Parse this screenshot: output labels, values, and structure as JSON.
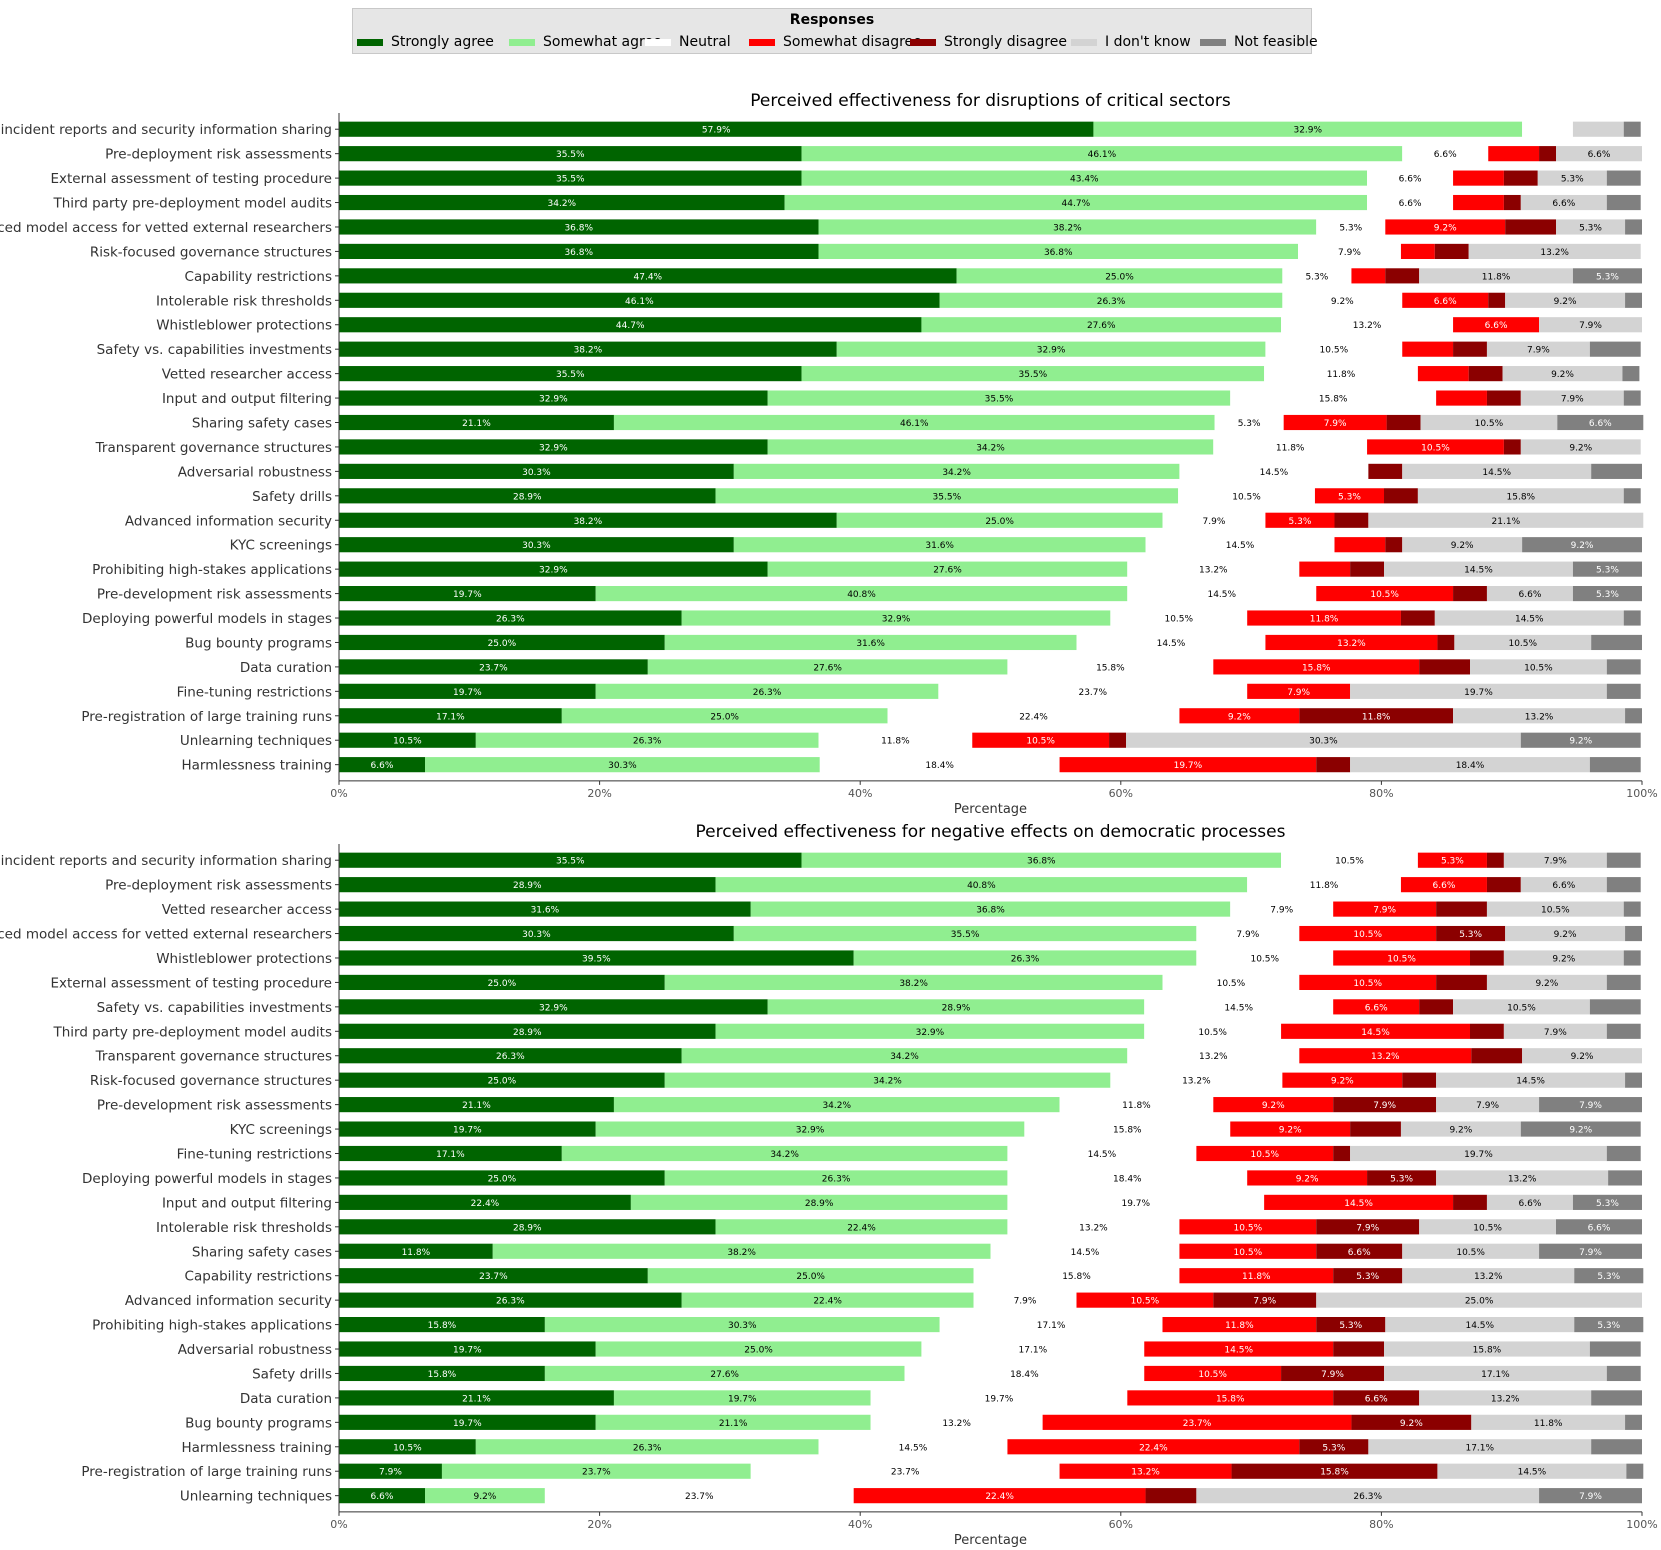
{
  "legend": {
    "title": "Responses",
    "entries": [
      {
        "name": "Strongly agree",
        "color": "#006400"
      },
      {
        "name": "Somewhat agree",
        "color": "#90ee90"
      },
      {
        "name": "Neutral",
        "color": "#ffffff"
      },
      {
        "name": "Somewhat disagree",
        "color": "#ff0000"
      },
      {
        "name": "Strongly disagree",
        "color": "#8b0000"
      },
      {
        "name": "I don't know",
        "color": "#d3d3d3"
      },
      {
        "name": "Not feasible",
        "color": "#808080"
      }
    ]
  },
  "chart_data": [
    {
      "type": "bar",
      "orientation": "horizontal",
      "stacked": true,
      "title": "Perceived effectiveness for disruptions of critical sectors",
      "xlabel": "Percentage",
      "ylabel": "",
      "xlim": [
        0,
        100
      ],
      "xticks": [
        "0%",
        "20%",
        "40%",
        "60%",
        "80%",
        "100%"
      ],
      "grid": false,
      "series": [
        "Strongly agree",
        "Somewhat agree",
        "Neutral",
        "Somewhat disagree",
        "Strongly disagree",
        "I don't know",
        "Not feasible"
      ],
      "rows": [
        {
          "label": "Safety incident reports and security information sharing",
          "values": [
            57.9,
            32.9,
            3.9,
            0,
            0,
            3.9,
            1.3
          ]
        },
        {
          "label": "Pre-deployment risk assessments",
          "values": [
            35.5,
            46.1,
            6.6,
            3.9,
            1.3,
            6.6,
            0
          ]
        },
        {
          "label": "External assessment of testing procedure",
          "values": [
            35.5,
            43.4,
            6.6,
            3.9,
            2.6,
            5.3,
            2.6
          ]
        },
        {
          "label": "Third party pre-deployment model audits",
          "values": [
            34.2,
            44.7,
            6.6,
            3.9,
            1.3,
            6.6,
            2.6
          ]
        },
        {
          "label": "Advanced model access for vetted external researchers",
          "values": [
            36.8,
            38.2,
            5.3,
            9.2,
            3.9,
            5.3,
            1.3
          ]
        },
        {
          "label": "Risk-focused governance structures",
          "values": [
            36.8,
            36.8,
            7.9,
            2.6,
            2.6,
            13.2,
            0
          ]
        },
        {
          "label": "Capability restrictions",
          "values": [
            47.4,
            25.0,
            5.3,
            2.6,
            2.6,
            11.8,
            5.3
          ]
        },
        {
          "label": "Intolerable risk thresholds",
          "values": [
            46.1,
            26.3,
            9.2,
            6.6,
            1.3,
            9.2,
            1.3
          ]
        },
        {
          "label": "Whistleblower protections",
          "values": [
            44.7,
            27.6,
            13.2,
            6.6,
            0,
            7.9,
            0
          ]
        },
        {
          "label": "Safety vs. capabilities investments",
          "values": [
            38.2,
            32.9,
            10.5,
            3.9,
            2.6,
            7.9,
            3.9
          ]
        },
        {
          "label": "Vetted researcher access",
          "values": [
            35.5,
            35.5,
            11.8,
            3.9,
            2.6,
            9.2,
            1.3
          ]
        },
        {
          "label": "Input and output filtering",
          "values": [
            32.9,
            35.5,
            15.8,
            3.9,
            2.6,
            7.9,
            1.3
          ]
        },
        {
          "label": "Sharing safety cases",
          "values": [
            21.1,
            46.1,
            5.3,
            7.9,
            2.6,
            10.5,
            6.6
          ]
        },
        {
          "label": "Transparent governance structures",
          "values": [
            32.9,
            34.2,
            11.8,
            10.5,
            1.3,
            9.2,
            0
          ]
        },
        {
          "label": "Adversarial robustness",
          "values": [
            30.3,
            34.2,
            14.5,
            0,
            2.6,
            14.5,
            3.9
          ]
        },
        {
          "label": "Safety drills",
          "values": [
            28.9,
            35.5,
            10.5,
            5.3,
            2.6,
            15.8,
            1.3
          ]
        },
        {
          "label": "Advanced information security",
          "values": [
            38.2,
            25.0,
            7.9,
            5.3,
            2.6,
            21.1,
            0
          ]
        },
        {
          "label": "KYC screenings",
          "values": [
            30.3,
            31.6,
            14.5,
            3.9,
            1.3,
            9.2,
            9.2
          ]
        },
        {
          "label": "Prohibiting high-stakes applications",
          "values": [
            32.9,
            27.6,
            13.2,
            3.9,
            2.6,
            14.5,
            5.3
          ]
        },
        {
          "label": "Pre-development risk assessments",
          "values": [
            19.7,
            40.8,
            14.5,
            10.5,
            2.6,
            6.6,
            5.3
          ]
        },
        {
          "label": "Deploying powerful models in stages",
          "values": [
            26.3,
            32.9,
            10.5,
            11.8,
            2.6,
            14.5,
            1.3
          ]
        },
        {
          "label": "Bug bounty programs",
          "values": [
            25.0,
            31.6,
            14.5,
            13.2,
            1.3,
            10.5,
            3.9
          ]
        },
        {
          "label": "Data curation",
          "values": [
            23.7,
            27.6,
            15.8,
            15.8,
            3.9,
            10.5,
            2.6
          ]
        },
        {
          "label": "Fine-tuning restrictions",
          "values": [
            19.7,
            26.3,
            23.7,
            7.9,
            0,
            19.7,
            2.6
          ]
        },
        {
          "label": "Pre-registration of large training runs",
          "values": [
            17.1,
            25.0,
            22.4,
            9.2,
            11.8,
            13.2,
            1.3
          ]
        },
        {
          "label": "Unlearning techniques",
          "values": [
            10.5,
            26.3,
            11.8,
            10.5,
            1.3,
            30.3,
            9.2
          ]
        },
        {
          "label": "Harmlessness training",
          "values": [
            6.6,
            30.3,
            18.4,
            19.7,
            2.6,
            18.4,
            3.9
          ]
        }
      ]
    },
    {
      "type": "bar",
      "orientation": "horizontal",
      "stacked": true,
      "title": "Perceived effectiveness for negative effects on democratic processes",
      "xlabel": "Percentage",
      "ylabel": "",
      "xlim": [
        0,
        100
      ],
      "xticks": [
        "0%",
        "20%",
        "40%",
        "60%",
        "80%",
        "100%"
      ],
      "grid": false,
      "series": [
        "Strongly agree",
        "Somewhat agree",
        "Neutral",
        "Somewhat disagree",
        "Strongly disagree",
        "I don't know",
        "Not feasible"
      ],
      "rows": [
        {
          "label": "Safety incident reports and security information sharing",
          "values": [
            35.5,
            36.8,
            10.5,
            5.3,
            1.3,
            7.9,
            2.6
          ]
        },
        {
          "label": "Pre-deployment risk assessments",
          "values": [
            28.9,
            40.8,
            11.8,
            6.6,
            2.6,
            6.6,
            2.6
          ]
        },
        {
          "label": "Vetted researcher access",
          "values": [
            31.6,
            36.8,
            7.9,
            7.9,
            3.9,
            10.5,
            1.3
          ]
        },
        {
          "label": "Advanced model access for vetted external researchers",
          "values": [
            30.3,
            35.5,
            7.9,
            10.5,
            5.3,
            9.2,
            1.3
          ]
        },
        {
          "label": "Whistleblower protections",
          "values": [
            39.5,
            26.3,
            10.5,
            10.5,
            2.6,
            9.2,
            1.3
          ]
        },
        {
          "label": "External assessment of testing procedure",
          "values": [
            25.0,
            38.2,
            10.5,
            10.5,
            3.9,
            9.2,
            2.6
          ]
        },
        {
          "label": "Safety vs. capabilities investments",
          "values": [
            32.9,
            28.9,
            14.5,
            6.6,
            2.6,
            10.5,
            3.9
          ]
        },
        {
          "label": "Third party pre-deployment model audits",
          "values": [
            28.9,
            32.9,
            10.5,
            14.5,
            2.6,
            7.9,
            2.6
          ]
        },
        {
          "label": "Transparent governance structures",
          "values": [
            26.3,
            34.2,
            13.2,
            13.2,
            3.9,
            9.2,
            0
          ]
        },
        {
          "label": "Risk-focused governance structures",
          "values": [
            25.0,
            34.2,
            13.2,
            9.2,
            2.6,
            14.5,
            1.3
          ]
        },
        {
          "label": "Pre-development risk assessments",
          "values": [
            21.1,
            34.2,
            11.8,
            9.2,
            7.9,
            7.9,
            7.9
          ]
        },
        {
          "label": "KYC screenings",
          "values": [
            19.7,
            32.9,
            15.8,
            9.2,
            3.9,
            9.2,
            9.2
          ]
        },
        {
          "label": "Fine-tuning restrictions",
          "values": [
            17.1,
            34.2,
            14.5,
            10.5,
            1.3,
            19.7,
            2.6
          ]
        },
        {
          "label": "Deploying powerful models in stages",
          "values": [
            25.0,
            26.3,
            18.4,
            9.2,
            5.3,
            13.2,
            2.6
          ]
        },
        {
          "label": "Input and output filtering",
          "values": [
            22.4,
            28.9,
            19.7,
            14.5,
            2.6,
            6.6,
            5.3
          ]
        },
        {
          "label": "Intolerable risk thresholds",
          "values": [
            28.9,
            22.4,
            13.2,
            10.5,
            7.9,
            10.5,
            6.6
          ]
        },
        {
          "label": "Sharing safety cases",
          "values": [
            11.8,
            38.2,
            14.5,
            10.5,
            6.6,
            10.5,
            7.9
          ]
        },
        {
          "label": "Capability restrictions",
          "values": [
            23.7,
            25.0,
            15.8,
            11.8,
            5.3,
            13.2,
            5.3
          ]
        },
        {
          "label": "Advanced information security",
          "values": [
            26.3,
            22.4,
            7.9,
            10.5,
            7.9,
            25.0,
            0
          ]
        },
        {
          "label": "Prohibiting high-stakes applications",
          "values": [
            15.8,
            30.3,
            17.1,
            11.8,
            5.3,
            14.5,
            5.3
          ]
        },
        {
          "label": "Adversarial robustness",
          "values": [
            19.7,
            25.0,
            17.1,
            14.5,
            3.9,
            15.8,
            3.9
          ]
        },
        {
          "label": "Safety drills",
          "values": [
            15.8,
            27.6,
            18.4,
            10.5,
            7.9,
            17.1,
            2.6
          ]
        },
        {
          "label": "Data curation",
          "values": [
            21.1,
            19.7,
            19.7,
            15.8,
            6.6,
            13.2,
            3.9
          ]
        },
        {
          "label": "Bug bounty programs",
          "values": [
            19.7,
            21.1,
            13.2,
            23.7,
            9.2,
            11.8,
            1.3
          ]
        },
        {
          "label": "Harmlessness training",
          "values": [
            10.5,
            26.3,
            14.5,
            22.4,
            5.3,
            17.1,
            3.9
          ]
        },
        {
          "label": "Pre-registration of large training runs",
          "values": [
            7.9,
            23.7,
            23.7,
            13.2,
            15.8,
            14.5,
            1.3
          ]
        },
        {
          "label": "Unlearning techniques",
          "values": [
            6.6,
            9.2,
            23.7,
            22.4,
            3.9,
            26.3,
            7.9
          ]
        }
      ]
    }
  ]
}
